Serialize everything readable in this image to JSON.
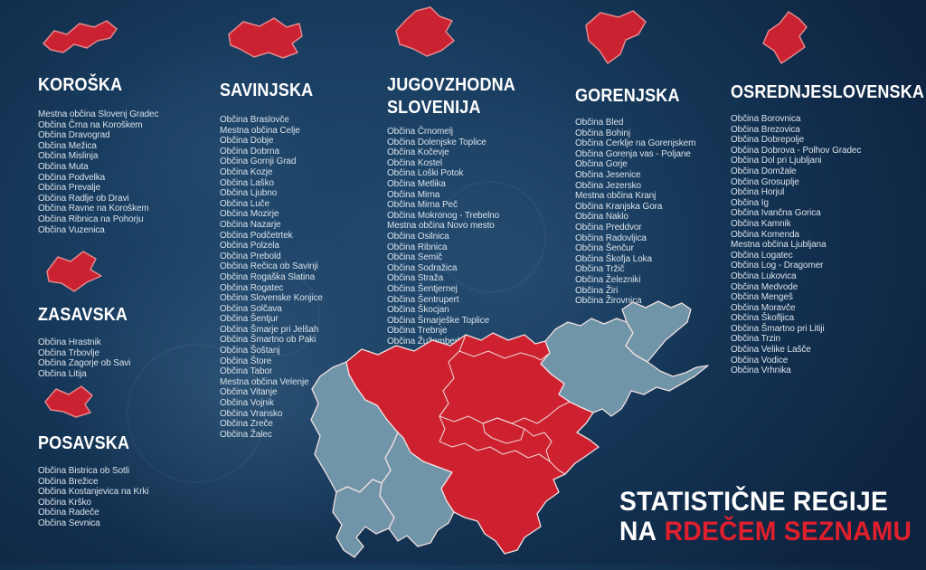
{
  "title": {
    "line1": "STATISTIČNE REGIJE",
    "line2_prefix": "NA",
    "line2_highlight": "RDEČEM SEZNAMU"
  },
  "colors": {
    "background_navy": "#16395b",
    "red_list": "#cd2130",
    "gray_region": "#7094a8",
    "map_border": "#f0e1e1",
    "heading_text": "#ffffff",
    "list_text": "#d9e2ea",
    "title_highlight_red": "#e01f2d"
  },
  "regions": [
    {
      "id": "koroska",
      "name": "KOROŠKA",
      "icon": "koroska-region-silhouette",
      "municipalities": [
        "Mestna občina Slovenj Gradec",
        "Občina Črna na Koroškem",
        "Občina Dravograd",
        "Občina Mežica",
        "Občina Mislinja",
        "Občina Muta",
        "Občina Podvelka",
        "Občina Prevalje",
        "Občina Radlje ob Dravi",
        "Občina Ravne na Koroškem",
        "Občina Ribnica na Pohorju",
        "Občina Vuzenica"
      ]
    },
    {
      "id": "zasavska",
      "name": "ZASAVSKA",
      "icon": "zasavska-region-silhouette",
      "municipalities": [
        "Občina Hrastnik",
        "Občina Trbovlje",
        "Občina Zagorje ob Savi",
        "Občina Litija"
      ]
    },
    {
      "id": "posavska",
      "name": "POSAVSKA",
      "icon": "posavska-region-silhouette",
      "municipalities": [
        "Občina Bistrica ob Sotli",
        "Občina Brežice",
        "Občina Kostanjevica na Krki",
        "Občina Krško",
        "Občina Radeče",
        "Občina Sevnica"
      ]
    },
    {
      "id": "savinjska",
      "name": "SAVINJSKA",
      "icon": "savinjska-region-silhouette",
      "municipalities": [
        "Občina Braslovče",
        "Mestna občina Celje",
        "Občina Dobje",
        "Občina Dobrna",
        "Občina Gornji Grad",
        "Občina Kozje",
        "Občina Laško",
        "Občina Ljubno",
        "Občina Luče",
        "Občina Mozirje",
        "Občina Nazarje",
        "Občina Podčetrtek",
        "Občina Polzela",
        "Občina Prebold",
        "Občina Rečica ob Savinji",
        "Občina Rogaška Slatina",
        "Občina Rogatec",
        "Občina Slovenske Konjice",
        "Občina Solčava",
        "Občina Šentjur",
        "Občina Šmarje pri Jelšah",
        "Občina Šmartno ob Paki",
        "Občina Šoštanj",
        "Občina Štore",
        "Občina Tabor",
        "Mestna občina Velenje",
        "Občina Vitanje",
        "Občina Vojnik",
        "Občina Vransko",
        "Občina Zreče",
        "Občina Žalec"
      ]
    },
    {
      "id": "jugovzhodna",
      "name": "JUGOVZHODNA SLOVENIJA",
      "icon": "jugovzhodna-region-silhouette",
      "municipalities": [
        "Občina Črnomelj",
        "Občina Dolenjske Toplice",
        "Občina Kočevje",
        "Občina Kostel",
        "Občina Loški Potok",
        "Občina Metlika",
        "Občina Mirna",
        "Občina Mirna Peč",
        "Občina Mokronog - Trebelno",
        "Mestna občina Novo mesto",
        "Občina Osilnica",
        "Občina Ribnica",
        "Občina Semič",
        "Občina Sodražica",
        "Občina Straža",
        "Občina Šentjernej",
        "Občina Šentrupert",
        "Občina Škocjan",
        "Občina Šmarješke Toplice",
        "Občina Trebnje",
        "Občina Žužemberk"
      ]
    },
    {
      "id": "gorenjska",
      "name": "GORENJSKA",
      "icon": "gorenjska-region-silhouette",
      "municipalities": [
        "Občina Bled",
        "Občina Bohinj",
        "Občina Cerklje na Gorenjskem",
        "Občina Gorenja vas - Poljane",
        "Občina Gorje",
        "Občina Jesenice",
        "Občina Jezersko",
        "Mestna občina Kranj",
        "Občina Kranjska Gora",
        "Občina Naklo",
        "Občina Preddvor",
        "Občina Radovljica",
        "Občina Šenčur",
        "Občina Škofja Loka",
        "Občina Tržič",
        "Občina Železniki",
        "Občina Žiri",
        "Občina Žirovnica"
      ]
    },
    {
      "id": "osrednjeslovenska",
      "name": "OSREDNJESLOVENSKA",
      "icon": "osrednjeslovenska-region-silhouette",
      "municipalities": [
        "Občina Borovnica",
        "Občina Brezovica",
        "Občina Dobrepolje",
        "Občina Dobrova - Polhov Gradec",
        "Občina Dol pri Ljubljani",
        "Občina Domžale",
        "Občina Grosuplje",
        "Občina Horjul",
        "Občina Ig",
        "Občina Ivančna Gorica",
        "Občina Kamnik",
        "Občina Komenda",
        "Mestna občina Ljubljana",
        "Občina Logatec",
        "Občina Log - Dragomer",
        "Občina Lukovica",
        "Občina Medvode",
        "Občina Mengeš",
        "Občina Moravče",
        "Občina Škofljica",
        "Občina Šmartno pri Litiji",
        "Občina Trzin",
        "Občina Velike Lašče",
        "Občina Vodice",
        "Občina Vrhnika"
      ]
    }
  ]
}
